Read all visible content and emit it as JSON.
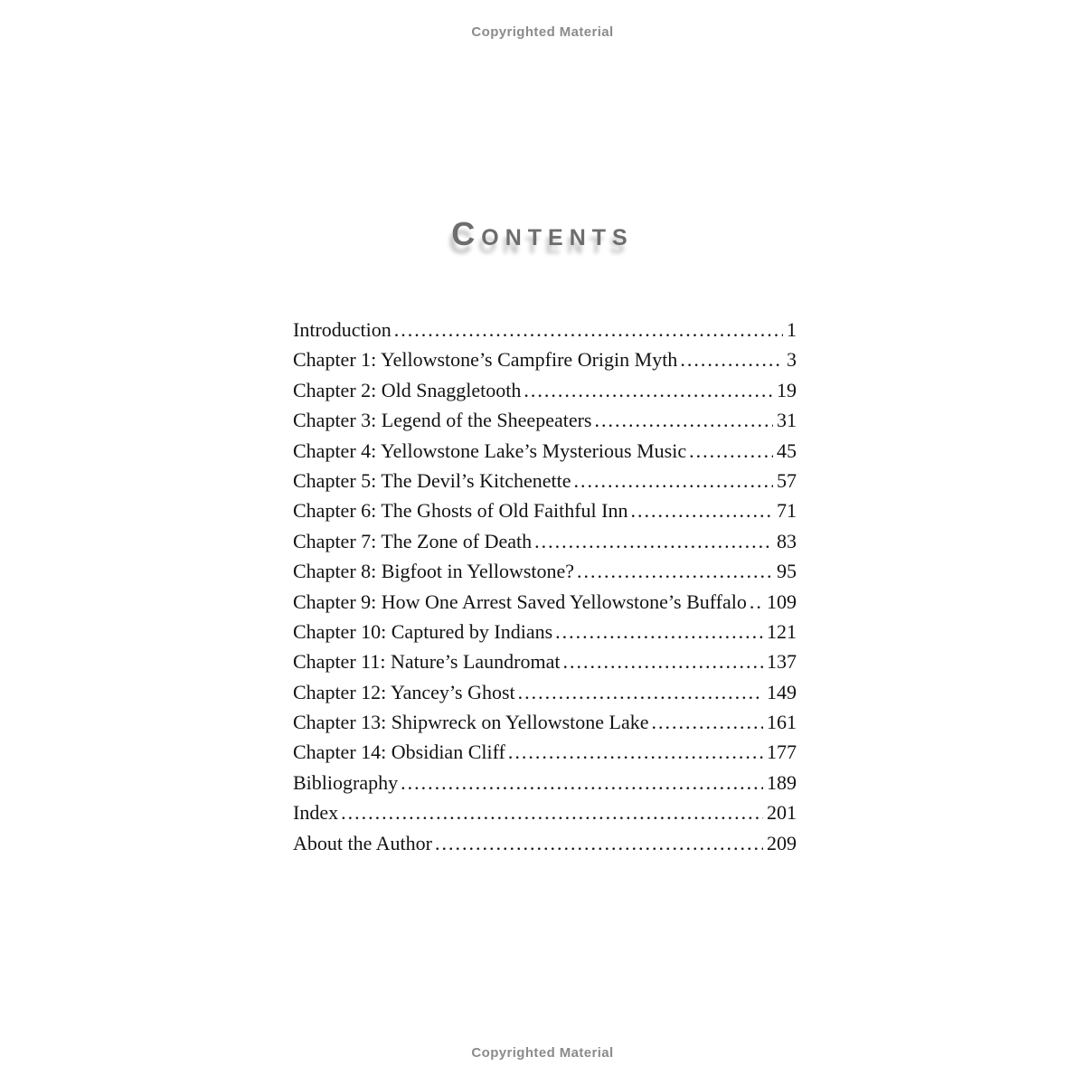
{
  "page": {
    "copyright_top": "Copyrighted Material",
    "copyright_bottom": "Copyrighted Material",
    "title": "Contents"
  },
  "toc": {
    "entries": [
      {
        "title": "Introduction",
        "page": "1"
      },
      {
        "title": "Chapter 1: Yellowstone’s Campfire Origin Myth",
        "page": "3"
      },
      {
        "title": "Chapter 2: Old Snaggletooth",
        "page": "19"
      },
      {
        "title": "Chapter 3: Legend of the Sheepeaters",
        "page": "31"
      },
      {
        "title": "Chapter 4: Yellowstone Lake’s Mysterious Music",
        "page": "45"
      },
      {
        "title": "Chapter 5: The Devil’s Kitchenette",
        "page": "57"
      },
      {
        "title": "Chapter 6: The Ghosts of Old Faithful Inn",
        "page": "71"
      },
      {
        "title": "Chapter 7: The Zone of Death",
        "page": "83"
      },
      {
        "title": "Chapter 8: Bigfoot in Yellowstone?",
        "page": "95"
      },
      {
        "title": "Chapter 9: How One Arrest Saved Yellowstone’s Buffalo",
        "page": "109"
      },
      {
        "title": "Chapter 10: Captured by Indians",
        "page": "121"
      },
      {
        "title": "Chapter 11: Nature’s Laundromat",
        "page": "137"
      },
      {
        "title": "Chapter 12: Yancey’s Ghost",
        "page": "149"
      },
      {
        "title": "Chapter 13: Shipwreck on Yellowstone Lake",
        "page": "161"
      },
      {
        "title": "Chapter 14: Obsidian Cliff",
        "page": "177"
      },
      {
        "title": "Bibliography",
        "page": "189"
      },
      {
        "title": "Index",
        "page": "201"
      },
      {
        "title": "About the Author",
        "page": "209"
      }
    ]
  }
}
